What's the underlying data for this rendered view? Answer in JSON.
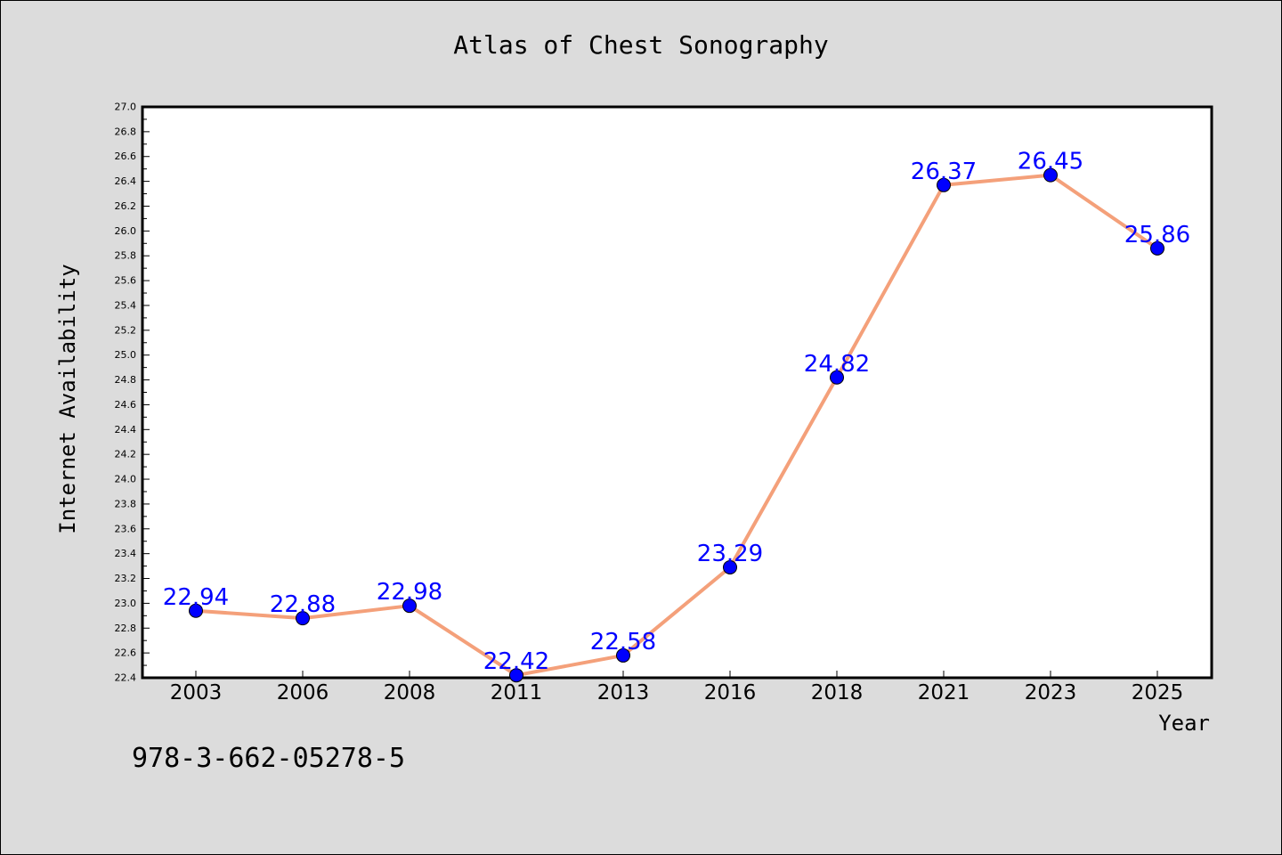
{
  "chart_data": {
    "type": "line",
    "title": "Atlas of Chest Sonography",
    "xlabel": "Year",
    "ylabel": "Internet Availability",
    "categories": [
      "2003",
      "2006",
      "2008",
      "2011",
      "2013",
      "2016",
      "2018",
      "2021",
      "2023",
      "2025"
    ],
    "series": [
      {
        "values": [
          22.94,
          22.88,
          22.98,
          22.42,
          22.58,
          23.29,
          24.82,
          26.37,
          26.45,
          25.86
        ]
      }
    ],
    "ylim": [
      22.4,
      27.0
    ],
    "yticks": [
      "22.4",
      "22.6",
      "22.8",
      "23.0",
      "23.2",
      "23.4",
      "23.6",
      "23.8",
      "24.0",
      "24.2",
      "24.4",
      "24.6",
      "24.8",
      "25.0",
      "25.2",
      "25.4",
      "25.6",
      "25.8",
      "26.0",
      "26.2",
      "26.4",
      "26.6",
      "26.8",
      "27.0"
    ],
    "data_labels": [
      "22.94",
      "22.88",
      "22.98",
      "22.42",
      "22.58",
      "23.29",
      "24.82",
      "26.37",
      "26.45",
      "25.86"
    ],
    "grid": false,
    "line_color": "#f4a07a",
    "marker_color": "#0000ff",
    "label_color": "#0000ff"
  },
  "footnote": "978-3-662-05278-5"
}
